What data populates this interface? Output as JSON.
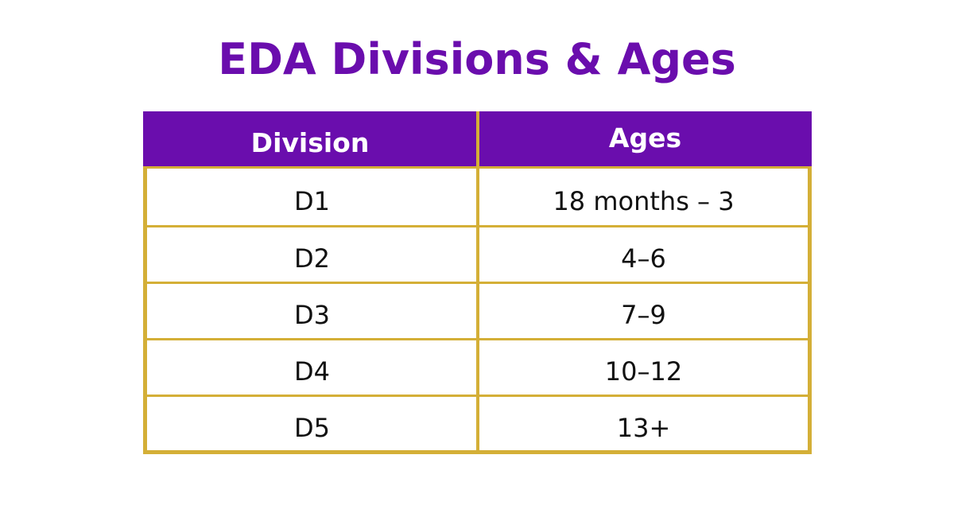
{
  "title": "EDA Divisions & Ages",
  "table": {
    "headers": [
      "Division",
      "Ages"
    ],
    "rows": [
      [
        "D1",
        "18 months – 3"
      ],
      [
        "D2",
        "4–6"
      ],
      [
        "D3",
        "7–9"
      ],
      [
        "D4",
        "10–12"
      ],
      [
        "D5",
        "13+"
      ]
    ]
  },
  "colors": {
    "header_bg": "#6a0dad",
    "border": "#d4af37",
    "title": "#6a0dad"
  }
}
